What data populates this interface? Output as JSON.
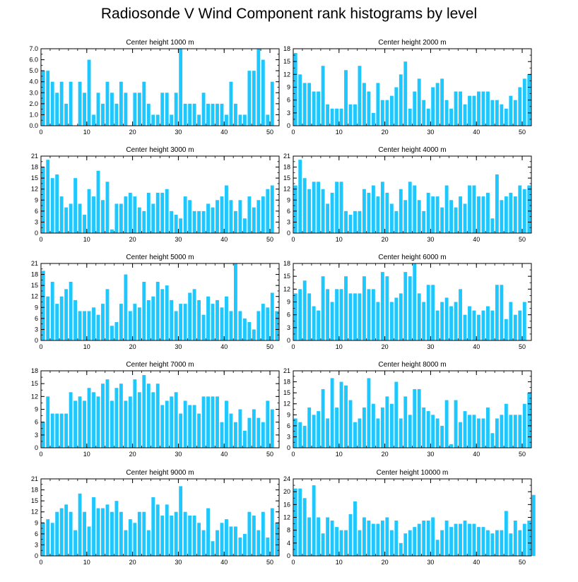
{
  "title": "Radiosonde V Wind Component rank histograms by level",
  "bar_color": "#1ec8ff",
  "chart_data": [
    {
      "type": "bar",
      "title": "Center height 1000 m",
      "xlabel": "",
      "ylabel": "",
      "xlim": [
        0,
        52
      ],
      "ylim": [
        0,
        7
      ],
      "yticks": [
        0,
        1,
        2,
        3,
        4,
        5,
        6,
        7
      ],
      "ytick_labels": [
        "0.0",
        "1.0",
        "2.0",
        "3.0",
        "4.0",
        "5.0",
        "6.0",
        "7.0"
      ],
      "xticks": [
        0,
        10,
        20,
        30,
        40,
        50
      ],
      "values": [
        5,
        5,
        4,
        3,
        4,
        2,
        4,
        0,
        4,
        3,
        6,
        1,
        3,
        2,
        4,
        3,
        2,
        4,
        3,
        0,
        3,
        3,
        4,
        2,
        1,
        1,
        3,
        3,
        1,
        3,
        7,
        2,
        2,
        2,
        1,
        3,
        2,
        2,
        2,
        2,
        1,
        4,
        2,
        1,
        1,
        5,
        5,
        7,
        6,
        1,
        4
      ]
    },
    {
      "type": "bar",
      "title": "Center height 2000 m",
      "xlabel": "",
      "ylabel": "",
      "xlim": [
        0,
        52
      ],
      "ylim": [
        0,
        18
      ],
      "yticks": [
        0,
        3,
        6,
        9,
        12,
        15,
        18
      ],
      "ytick_labels": [
        "0",
        "3",
        "6",
        "9",
        "12",
        "15",
        "18"
      ],
      "xticks": [
        0,
        10,
        20,
        30,
        40,
        50
      ],
      "values": [
        17,
        12,
        10,
        10,
        8,
        8,
        14,
        5,
        4,
        4,
        4,
        13,
        5,
        5,
        14,
        10,
        8,
        3,
        10,
        6,
        6,
        7,
        9,
        12,
        15,
        4,
        8,
        11,
        6,
        4,
        9,
        10,
        11,
        6,
        4,
        8,
        8,
        5,
        7,
        7,
        8,
        8,
        8,
        6,
        6,
        5,
        4,
        7,
        6,
        9,
        11,
        12
      ]
    },
    {
      "type": "bar",
      "title": "Center height 3000 m",
      "xlabel": "",
      "ylabel": "",
      "xlim": [
        0,
        52
      ],
      "ylim": [
        0,
        21
      ],
      "yticks": [
        0,
        3,
        6,
        9,
        12,
        15,
        18,
        21
      ],
      "ytick_labels": [
        "0",
        "3",
        "6",
        "9",
        "12",
        "15",
        "18",
        "21"
      ],
      "xticks": [
        0,
        10,
        20,
        30,
        40,
        50
      ],
      "values": [
        18,
        20,
        15,
        16,
        10,
        7,
        8,
        15,
        8,
        5,
        12,
        10,
        17,
        9,
        14,
        1,
        8,
        8,
        10,
        11,
        10,
        7,
        6,
        11,
        8,
        11,
        11,
        12,
        6,
        5,
        4,
        10,
        9,
        6,
        6,
        6,
        8,
        7,
        9,
        10,
        13,
        9,
        6,
        9,
        4,
        10,
        7,
        9,
        10,
        12,
        13
      ]
    },
    {
      "type": "bar",
      "title": "Center height 4000 m",
      "xlabel": "",
      "ylabel": "",
      "xlim": [
        0,
        52
      ],
      "ylim": [
        0,
        21
      ],
      "yticks": [
        0,
        3,
        6,
        9,
        12,
        15,
        18,
        21
      ],
      "ytick_labels": [
        "0",
        "3",
        "6",
        "9",
        "12",
        "15",
        "18",
        "21"
      ],
      "xticks": [
        0,
        10,
        20,
        30,
        40,
        50
      ],
      "values": [
        13,
        20,
        15,
        12,
        14,
        14,
        12,
        8,
        11,
        14,
        14,
        6,
        5,
        6,
        6,
        12,
        11,
        13,
        10,
        14,
        11,
        8,
        6,
        12,
        9,
        14,
        13,
        9,
        6,
        11,
        10,
        10,
        7,
        13,
        9,
        7,
        10,
        8,
        13,
        13,
        10,
        10,
        11,
        4,
        16,
        9,
        10,
        11,
        10,
        13,
        12,
        13
      ]
    },
    {
      "type": "bar",
      "title": "Center height 5000 m",
      "xlabel": "",
      "ylabel": "",
      "xlim": [
        0,
        52
      ],
      "ylim": [
        0,
        21
      ],
      "yticks": [
        0,
        3,
        6,
        9,
        12,
        15,
        18,
        21
      ],
      "ytick_labels": [
        "0",
        "3",
        "6",
        "9",
        "12",
        "15",
        "18",
        "21"
      ],
      "xticks": [
        0,
        10,
        20,
        30,
        40,
        50
      ],
      "values": [
        19,
        12,
        16,
        10,
        12,
        14,
        16,
        11,
        8,
        8,
        8,
        9,
        7,
        10,
        14,
        4,
        5,
        10,
        18,
        8,
        10,
        9,
        16,
        11,
        12,
        16,
        14,
        15,
        11,
        8,
        10,
        10,
        13,
        14,
        11,
        7,
        12,
        10,
        11,
        9,
        12,
        8,
        21,
        8,
        6,
        5,
        3,
        8,
        10,
        9,
        13,
        8
      ]
    },
    {
      "type": "bar",
      "title": "Center height 6000 m",
      "xlabel": "",
      "ylabel": "",
      "xlim": [
        0,
        52
      ],
      "ylim": [
        0,
        18
      ],
      "yticks": [
        0,
        3,
        6,
        9,
        12,
        15,
        18
      ],
      "ytick_labels": [
        "0",
        "3",
        "6",
        "9",
        "12",
        "15",
        "18"
      ],
      "xticks": [
        0,
        10,
        20,
        30,
        40,
        50
      ],
      "values": [
        11,
        12,
        14,
        11,
        8,
        7,
        15,
        12,
        9,
        12,
        12,
        15,
        11,
        11,
        11,
        15,
        12,
        12,
        9,
        16,
        15,
        9,
        10,
        11,
        16,
        15,
        18,
        11,
        9,
        13,
        13,
        7,
        9,
        10,
        8,
        9,
        12,
        6,
        8,
        7,
        6,
        7,
        8,
        7,
        13,
        13,
        5,
        9,
        6,
        7,
        9
      ]
    },
    {
      "type": "bar",
      "title": "Center height 7000 m",
      "xlabel": "",
      "ylabel": "",
      "xlim": [
        0,
        52
      ],
      "ylim": [
        0,
        18
      ],
      "yticks": [
        0,
        3,
        6,
        9,
        12,
        15,
        18
      ],
      "ytick_labels": [
        "0",
        "3",
        "6",
        "9",
        "12",
        "15",
        "18"
      ],
      "xticks": [
        0,
        10,
        20,
        30,
        40,
        50
      ],
      "values": [
        6,
        12,
        8,
        8,
        8,
        8,
        13,
        11,
        12,
        11,
        14,
        13,
        12,
        15,
        16,
        11,
        14,
        15,
        11,
        12,
        16,
        13,
        17,
        15,
        13,
        15,
        10,
        11,
        12,
        13,
        8,
        11,
        10,
        10,
        8,
        12,
        12,
        12,
        12,
        6,
        11,
        8,
        6,
        9,
        4,
        7,
        9,
        7,
        6,
        11,
        9
      ]
    },
    {
      "type": "bar",
      "title": "Center height 8000 m",
      "xlabel": "",
      "ylabel": "",
      "xlim": [
        0,
        52
      ],
      "ylim": [
        0,
        21
      ],
      "yticks": [
        0,
        3,
        6,
        9,
        12,
        15,
        18,
        21
      ],
      "ytick_labels": [
        "0",
        "3",
        "6",
        "9",
        "12",
        "15",
        "18",
        "21"
      ],
      "xticks": [
        0,
        10,
        20,
        30,
        40,
        50
      ],
      "values": [
        8,
        7,
        6,
        11,
        9,
        10,
        16,
        8,
        19,
        11,
        18,
        17,
        13,
        7,
        8,
        11,
        19,
        12,
        8,
        11,
        14,
        12,
        18,
        8,
        14,
        9,
        16,
        16,
        11,
        10,
        9,
        8,
        6,
        13,
        1,
        13,
        7,
        10,
        9,
        9,
        8,
        8,
        11,
        4,
        8,
        9,
        12,
        9,
        9,
        9,
        12,
        15
      ]
    },
    {
      "type": "bar",
      "title": "Center height 9000 m",
      "xlabel": "",
      "ylabel": "",
      "xlim": [
        0,
        52
      ],
      "ylim": [
        0,
        21
      ],
      "yticks": [
        0,
        3,
        6,
        9,
        12,
        15,
        18,
        21
      ],
      "ytick_labels": [
        "0",
        "3",
        "6",
        "9",
        "12",
        "15",
        "18",
        "21"
      ],
      "xticks": [
        0,
        10,
        20,
        30,
        40,
        50
      ],
      "values": [
        9,
        10,
        9,
        12,
        13,
        14,
        12,
        7,
        17,
        12,
        8,
        16,
        13,
        13,
        14,
        12,
        15,
        12,
        7,
        10,
        9,
        12,
        12,
        7,
        16,
        14,
        11,
        14,
        11,
        12,
        19,
        12,
        11,
        11,
        9,
        7,
        13,
        4,
        7,
        9,
        10,
        8,
        8,
        5,
        6,
        12,
        11,
        7,
        12,
        5,
        13,
        9
      ]
    },
    {
      "type": "bar",
      "title": "Center height 10000 m",
      "xlabel": "",
      "ylabel": "",
      "xlim": [
        0,
        52
      ],
      "ylim": [
        0,
        24
      ],
      "yticks": [
        0,
        4,
        8,
        12,
        16,
        20,
        24
      ],
      "ytick_labels": [
        "0",
        "4",
        "8",
        "12",
        "16",
        "20",
        "24"
      ],
      "xticks": [
        0,
        10,
        20,
        30,
        40,
        50
      ],
      "values": [
        21,
        21,
        18,
        12,
        22,
        12,
        7,
        12,
        11,
        9,
        8,
        8,
        13,
        17,
        8,
        12,
        11,
        10,
        10,
        11,
        12,
        8,
        11,
        4,
        7,
        8,
        9,
        10,
        11,
        11,
        12,
        5,
        8,
        11,
        9,
        10,
        10,
        11,
        10,
        10,
        9,
        9,
        8,
        7,
        8,
        8,
        14,
        7,
        11,
        8,
        10,
        11,
        19
      ]
    }
  ]
}
